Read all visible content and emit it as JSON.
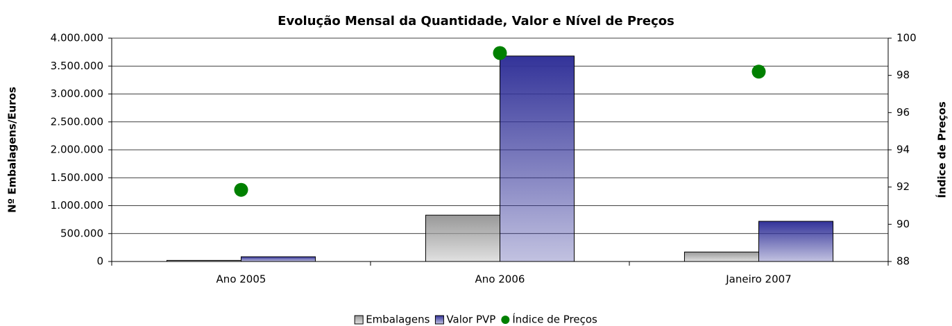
{
  "chart_data": {
    "type": "bar",
    "title": "Evolução Mensal da Quantidade, Valor e Nível de Preços",
    "y_label": "Nº Embalagens/Euros",
    "y2_label": "Índice de Preços",
    "categories": [
      "Ano 2005",
      "Ano 2006",
      "Janeiro 2007"
    ],
    "series": [
      {
        "name": "Embalagens",
        "color": "#999999",
        "type": "bar",
        "values": [
          20000,
          830000,
          170000
        ]
      },
      {
        "name": "Valor PVP",
        "color": "#333399",
        "type": "bar",
        "values": [
          85000,
          3680000,
          720000
        ]
      },
      {
        "name": "Índice de Preços",
        "color": "#008000",
        "type": "scatter",
        "axis": "y2",
        "values": [
          91.85,
          99.2,
          98.2
        ]
      }
    ],
    "ylim": [
      0,
      4000000
    ],
    "yticks": [
      {
        "value": 0,
        "label": "0"
      },
      {
        "value": 500000,
        "label": "500.000"
      },
      {
        "value": 1000000,
        "label": "1.000.000"
      },
      {
        "value": 1500000,
        "label": "1.500.000"
      },
      {
        "value": 2000000,
        "label": "2.000.000"
      },
      {
        "value": 2500000,
        "label": "2.500.000"
      },
      {
        "value": 3000000,
        "label": "3.000.000"
      },
      {
        "value": 3500000,
        "label": "3.500.000"
      },
      {
        "value": 4000000,
        "label": "4.000.000"
      }
    ],
    "y2lim": [
      88,
      100
    ],
    "y2ticks": [
      88,
      90,
      92,
      94,
      96,
      98,
      100
    ],
    "grid": true,
    "legend": "bottom"
  }
}
